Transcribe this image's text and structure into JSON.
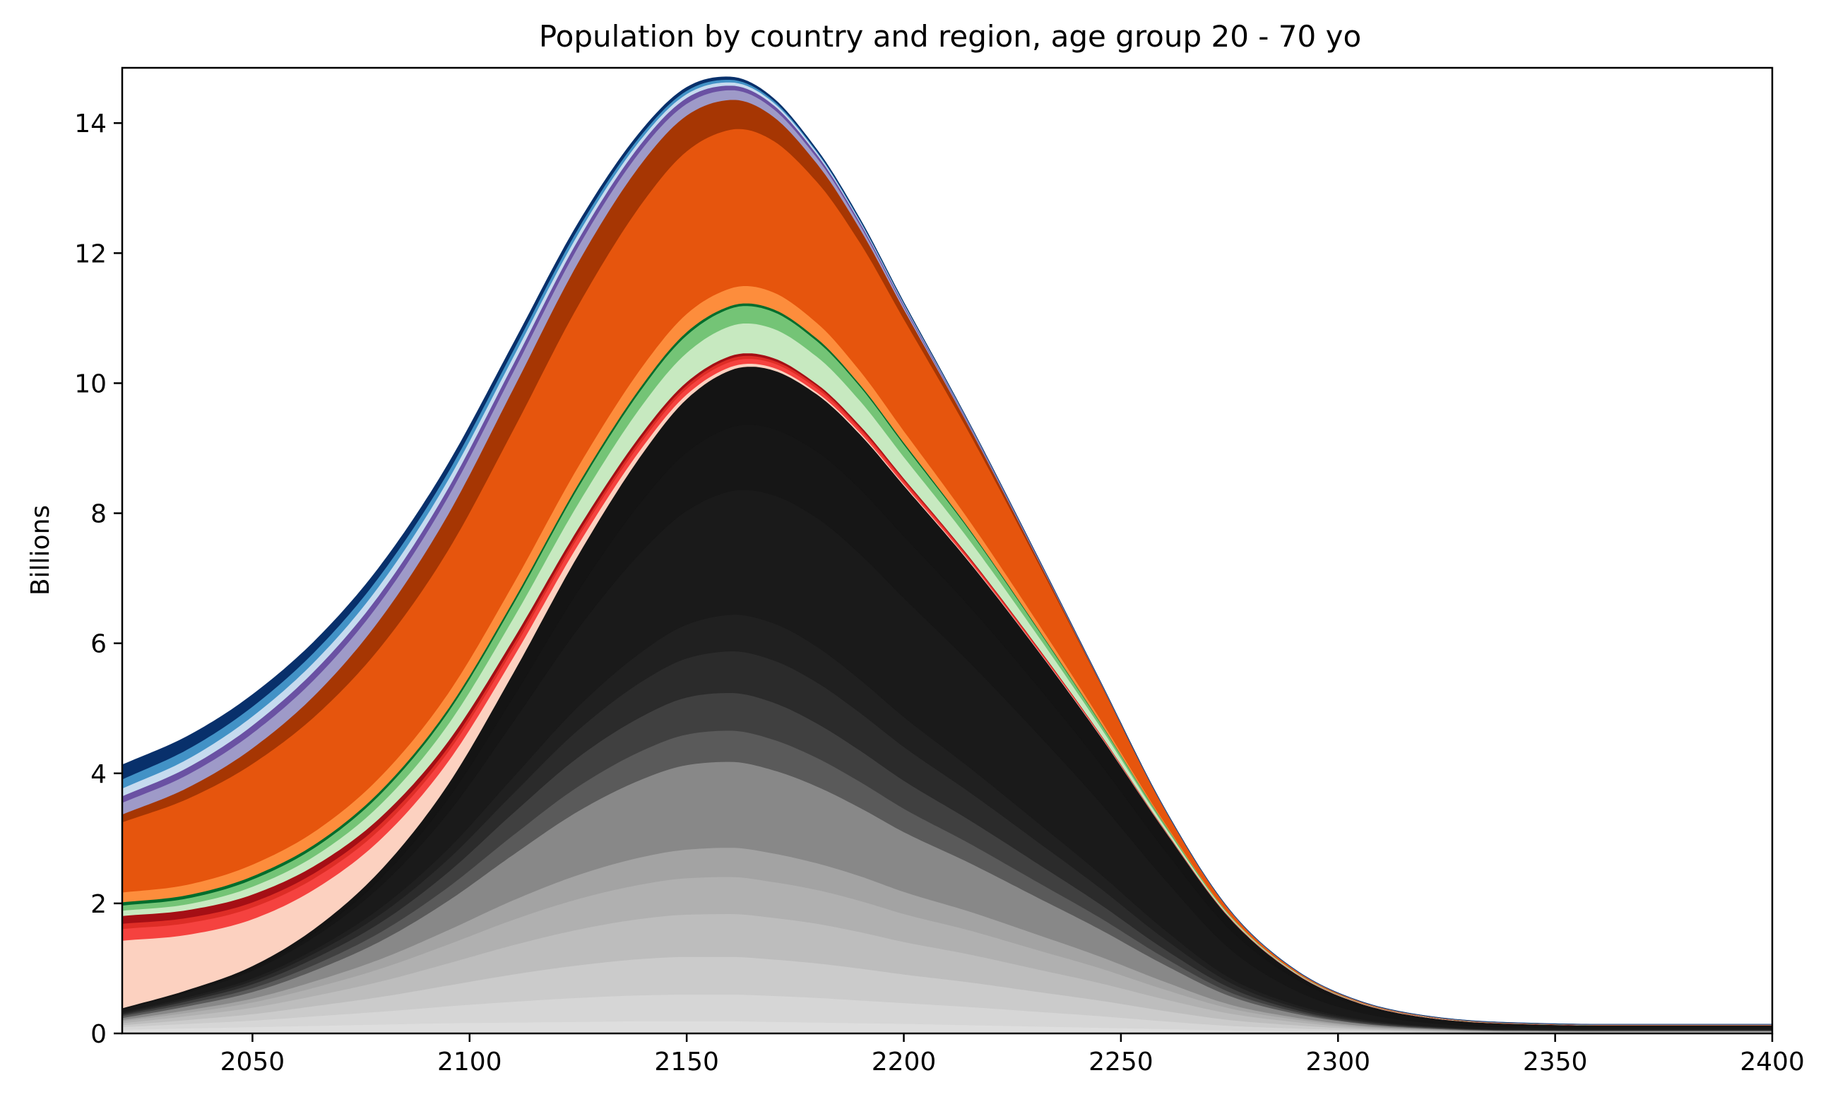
{
  "chart_data": {
    "type": "area",
    "title": "Population by country and region, age group 20 - 70 yo",
    "xlabel": "",
    "ylabel": "Billions",
    "xlim": [
      2020,
      2400
    ],
    "ylim": [
      0,
      14.85
    ],
    "x_ticks": [
      2050,
      2100,
      2150,
      2200,
      2250,
      2300,
      2350,
      2400
    ],
    "y_ticks": [
      0,
      2,
      4,
      6,
      8,
      10,
      12,
      14
    ],
    "grid": false,
    "legend": "none",
    "x": [
      2020,
      2035,
      2050,
      2065,
      2080,
      2095,
      2110,
      2125,
      2140,
      2150,
      2160,
      2170,
      2180,
      2190,
      2200,
      2215,
      2230,
      2245,
      2260,
      2275,
      2290,
      2305,
      2320,
      2340,
      2360,
      2380,
      2400
    ],
    "series": [
      {
        "color": "#dedede",
        "values": [
          0.06,
          0.08,
          0.1,
          0.12,
          0.14,
          0.16,
          0.17,
          0.18,
          0.19,
          0.19,
          0.19,
          0.18,
          0.17,
          0.16,
          0.15,
          0.13,
          0.11,
          0.09,
          0.07,
          0.05,
          0.04,
          0.03,
          0.02,
          0.015,
          0.01,
          0.01,
          0.01
        ]
      },
      {
        "color": "#d6d6d6",
        "values": [
          0.04,
          0.07,
          0.1,
          0.15,
          0.2,
          0.26,
          0.32,
          0.37,
          0.4,
          0.41,
          0.41,
          0.4,
          0.38,
          0.35,
          0.32,
          0.28,
          0.23,
          0.18,
          0.12,
          0.07,
          0.04,
          0.02,
          0.01,
          0.005,
          0.005,
          0.005,
          0.005
        ]
      },
      {
        "color": "#cbcbcb",
        "values": [
          0.03,
          0.06,
          0.1,
          0.16,
          0.23,
          0.32,
          0.42,
          0.5,
          0.56,
          0.58,
          0.58,
          0.56,
          0.53,
          0.49,
          0.44,
          0.38,
          0.31,
          0.24,
          0.16,
          0.09,
          0.05,
          0.02,
          0.01,
          0.005,
          0.005,
          0.005,
          0.005
        ]
      },
      {
        "color": "#bdbdbd",
        "values": [
          0.03,
          0.06,
          0.1,
          0.16,
          0.24,
          0.34,
          0.45,
          0.55,
          0.62,
          0.65,
          0.66,
          0.64,
          0.61,
          0.56,
          0.5,
          0.43,
          0.35,
          0.27,
          0.18,
          0.1,
          0.05,
          0.02,
          0.01,
          0.005,
          0.005,
          0.005,
          0.005
        ]
      },
      {
        "color": "#b0b0b0",
        "values": [
          0.03,
          0.05,
          0.08,
          0.13,
          0.2,
          0.29,
          0.39,
          0.47,
          0.53,
          0.56,
          0.57,
          0.55,
          0.52,
          0.48,
          0.43,
          0.37,
          0.3,
          0.23,
          0.15,
          0.08,
          0.04,
          0.02,
          0.01,
          0.005,
          0.005,
          0.005,
          0.005
        ]
      },
      {
        "color": "#a3a3a3",
        "values": [
          0.02,
          0.04,
          0.06,
          0.1,
          0.15,
          0.22,
          0.3,
          0.37,
          0.42,
          0.44,
          0.45,
          0.44,
          0.41,
          0.38,
          0.34,
          0.29,
          0.24,
          0.18,
          0.12,
          0.06,
          0.03,
          0.015,
          0.01,
          0.005,
          0.005,
          0.005,
          0.005
        ]
      },
      {
        "color": "#888888",
        "values": [
          0.03,
          0.06,
          0.1,
          0.17,
          0.28,
          0.45,
          0.7,
          0.98,
          1.2,
          1.3,
          1.32,
          1.28,
          1.18,
          1.05,
          0.92,
          0.75,
          0.58,
          0.42,
          0.26,
          0.13,
          0.06,
          0.03,
          0.01,
          0.005,
          0.005,
          0.005,
          0.005
        ]
      },
      {
        "color": "#5a5a5a",
        "values": [
          0.03,
          0.04,
          0.06,
          0.09,
          0.14,
          0.21,
          0.3,
          0.38,
          0.44,
          0.47,
          0.48,
          0.47,
          0.44,
          0.4,
          0.36,
          0.3,
          0.24,
          0.18,
          0.11,
          0.06,
          0.03,
          0.01,
          0.01,
          0.005,
          0.005,
          0.005,
          0.005
        ]
      },
      {
        "color": "#404040",
        "values": [
          0.02,
          0.04,
          0.06,
          0.1,
          0.15,
          0.23,
          0.34,
          0.45,
          0.53,
          0.57,
          0.58,
          0.57,
          0.53,
          0.48,
          0.43,
          0.36,
          0.29,
          0.21,
          0.13,
          0.07,
          0.03,
          0.02,
          0.01,
          0.005,
          0.005,
          0.005,
          0.005
        ]
      },
      {
        "color": "#2b2b2b",
        "values": [
          0.02,
          0.03,
          0.05,
          0.08,
          0.13,
          0.2,
          0.3,
          0.42,
          0.54,
          0.6,
          0.64,
          0.65,
          0.63,
          0.58,
          0.52,
          0.43,
          0.34,
          0.25,
          0.16,
          0.08,
          0.04,
          0.02,
          0.01,
          0.005,
          0.005,
          0.005,
          0.005
        ]
      },
      {
        "color": "#202020",
        "values": [
          0.02,
          0.03,
          0.04,
          0.06,
          0.1,
          0.16,
          0.25,
          0.36,
          0.46,
          0.52,
          0.56,
          0.57,
          0.55,
          0.51,
          0.46,
          0.38,
          0.3,
          0.22,
          0.14,
          0.07,
          0.04,
          0.02,
          0.01,
          0.005,
          0.005,
          0.005,
          0.005
        ]
      },
      {
        "color": "#1a1a1a",
        "values": [
          0.04,
          0.07,
          0.12,
          0.2,
          0.34,
          0.55,
          0.85,
          1.2,
          1.55,
          1.75,
          1.9,
          1.97,
          1.98,
          1.93,
          1.83,
          1.62,
          1.38,
          1.1,
          0.78,
          0.45,
          0.22,
          0.1,
          0.05,
          0.03,
          0.02,
          0.02,
          0.02
        ]
      },
      {
        "color": "#161616",
        "values": [
          0.01,
          0.02,
          0.03,
          0.06,
          0.12,
          0.22,
          0.38,
          0.58,
          0.78,
          0.9,
          0.98,
          1.02,
          1.02,
          1.0,
          0.95,
          0.86,
          0.74,
          0.6,
          0.45,
          0.3,
          0.18,
          0.1,
          0.06,
          0.04,
          0.03,
          0.03,
          0.03
        ]
      },
      {
        "color": "#141414",
        "values": [
          0.01,
          0.02,
          0.04,
          0.07,
          0.13,
          0.22,
          0.37,
          0.55,
          0.72,
          0.82,
          0.88,
          0.9,
          0.88,
          0.84,
          0.78,
          0.68,
          0.56,
          0.43,
          0.3,
          0.17,
          0.08,
          0.04,
          0.02,
          0.015,
          0.015,
          0.015,
          0.015
        ]
      },
      {
        "color": "#fcd1c0",
        "values": [
          1.04,
          0.85,
          0.72,
          0.6,
          0.47,
          0.35,
          0.24,
          0.16,
          0.1,
          0.07,
          0.05,
          0.04,
          0.03,
          0.025,
          0.02,
          0.015,
          0.01,
          0.01,
          0.005,
          0.005,
          0.005,
          0.005,
          0.005,
          0.002,
          0.002,
          0.002,
          0.002
        ]
      },
      {
        "color": "#f5423f",
        "values": [
          0.18,
          0.18,
          0.18,
          0.17,
          0.16,
          0.15,
          0.13,
          0.12,
          0.1,
          0.09,
          0.08,
          0.07,
          0.06,
          0.05,
          0.04,
          0.03,
          0.02,
          0.01,
          0.005,
          0.003,
          0.002,
          0.001,
          0.001,
          0.001,
          0.001,
          0.001,
          0.001
        ]
      },
      {
        "color": "#de2d26",
        "values": [
          0.08,
          0.08,
          0.08,
          0.08,
          0.08,
          0.07,
          0.07,
          0.06,
          0.06,
          0.05,
          0.05,
          0.04,
          0.04,
          0.03,
          0.03,
          0.02,
          0.015,
          0.01,
          0.005,
          0.003,
          0.002,
          0.001,
          0.001,
          0.001,
          0.001,
          0.001,
          0.001
        ]
      },
      {
        "color": "#a50f15",
        "values": [
          0.12,
          0.12,
          0.12,
          0.11,
          0.1,
          0.09,
          0.08,
          0.07,
          0.06,
          0.05,
          0.04,
          0.04,
          0.03,
          0.03,
          0.02,
          0.015,
          0.01,
          0.005,
          0.003,
          0.002,
          0.001,
          0.001,
          0.001,
          0.001,
          0.001,
          0.001,
          0.001
        ]
      },
      {
        "color": "#c7e9c0",
        "values": [
          0.08,
          0.09,
          0.12,
          0.15,
          0.2,
          0.26,
          0.32,
          0.38,
          0.43,
          0.45,
          0.46,
          0.45,
          0.42,
          0.38,
          0.33,
          0.26,
          0.18,
          0.11,
          0.05,
          0.02,
          0.01,
          0.005,
          0.002,
          0.001,
          0.001,
          0.001,
          0.001
        ]
      },
      {
        "color": "#74c476",
        "values": [
          0.08,
          0.09,
          0.11,
          0.13,
          0.16,
          0.19,
          0.22,
          0.25,
          0.26,
          0.27,
          0.27,
          0.26,
          0.24,
          0.22,
          0.19,
          0.15,
          0.1,
          0.06,
          0.03,
          0.01,
          0.005,
          0.002,
          0.001,
          0.001,
          0.001,
          0.001,
          0.001
        ]
      },
      {
        "color": "#006d2c",
        "values": [
          0.05,
          0.05,
          0.05,
          0.05,
          0.05,
          0.05,
          0.05,
          0.05,
          0.05,
          0.05,
          0.04,
          0.04,
          0.04,
          0.03,
          0.03,
          0.02,
          0.015,
          0.01,
          0.005,
          0.002,
          0.001,
          0.001,
          0.001,
          0.001,
          0.001,
          0.001,
          0.001
        ]
      },
      {
        "color": "#fd8d3c",
        "values": [
          0.15,
          0.16,
          0.18,
          0.2,
          0.22,
          0.24,
          0.26,
          0.27,
          0.28,
          0.28,
          0.27,
          0.26,
          0.24,
          0.21,
          0.18,
          0.13,
          0.09,
          0.05,
          0.02,
          0.01,
          0.005,
          0.002,
          0.001,
          0.001,
          0.001,
          0.001,
          0.001
        ]
      },
      {
        "color": "#e6550d",
        "values": [
          1.08,
          1.32,
          1.55,
          1.78,
          2.0,
          2.2,
          2.37,
          2.48,
          2.52,
          2.5,
          2.44,
          2.33,
          2.17,
          1.97,
          1.72,
          1.35,
          0.95,
          0.55,
          0.2,
          0.06,
          0.02,
          0.01,
          0.005,
          0.002,
          0.001,
          0.001,
          0.001
        ]
      },
      {
        "color": "#a63603",
        "values": [
          0.12,
          0.17,
          0.24,
          0.33,
          0.44,
          0.55,
          0.63,
          0.66,
          0.62,
          0.55,
          0.46,
          0.37,
          0.28,
          0.21,
          0.15,
          0.09,
          0.05,
          0.02,
          0.008,
          0.003,
          0.001,
          0.001,
          0.001,
          0.001,
          0.001,
          0.001,
          0.001
        ]
      },
      {
        "color": "#9e9ac8",
        "values": [
          0.18,
          0.2,
          0.23,
          0.25,
          0.26,
          0.27,
          0.26,
          0.24,
          0.21,
          0.18,
          0.15,
          0.12,
          0.09,
          0.06,
          0.04,
          0.02,
          0.01,
          0.005,
          0.002,
          0.001,
          0.001,
          0.001,
          0.001,
          0.001,
          0.001,
          0.001,
          0.001
        ]
      },
      {
        "color": "#6a51a3",
        "values": [
          0.1,
          0.11,
          0.12,
          0.13,
          0.13,
          0.13,
          0.12,
          0.11,
          0.1,
          0.09,
          0.07,
          0.06,
          0.05,
          0.04,
          0.03,
          0.02,
          0.01,
          0.005,
          0.002,
          0.001,
          0.001,
          0.001,
          0.001,
          0.001,
          0.001,
          0.001,
          0.001
        ]
      },
      {
        "color": "#c6dbef",
        "values": [
          0.12,
          0.13,
          0.14,
          0.14,
          0.14,
          0.13,
          0.11,
          0.09,
          0.07,
          0.06,
          0.05,
          0.04,
          0.03,
          0.02,
          0.015,
          0.01,
          0.005,
          0.002,
          0.001,
          0.001,
          0.001,
          0.001,
          0.001,
          0.001,
          0.001,
          0.001,
          0.001
        ]
      },
      {
        "color": "#4292c6",
        "values": [
          0.14,
          0.15,
          0.15,
          0.15,
          0.14,
          0.12,
          0.1,
          0.08,
          0.06,
          0.05,
          0.04,
          0.03,
          0.02,
          0.015,
          0.01,
          0.005,
          0.003,
          0.001,
          0.001,
          0.001,
          0.001,
          0.001,
          0.001,
          0.001,
          0.001,
          0.001,
          0.001
        ]
      },
      {
        "color": "#08306b",
        "values": [
          0.22,
          0.2,
          0.18,
          0.16,
          0.14,
          0.12,
          0.1,
          0.08,
          0.06,
          0.05,
          0.04,
          0.03,
          0.02,
          0.015,
          0.01,
          0.005,
          0.003,
          0.001,
          0.001,
          0.001,
          0.001,
          0.001,
          0.001,
          0.001,
          0.001,
          0.001,
          0.001
        ]
      }
    ]
  }
}
